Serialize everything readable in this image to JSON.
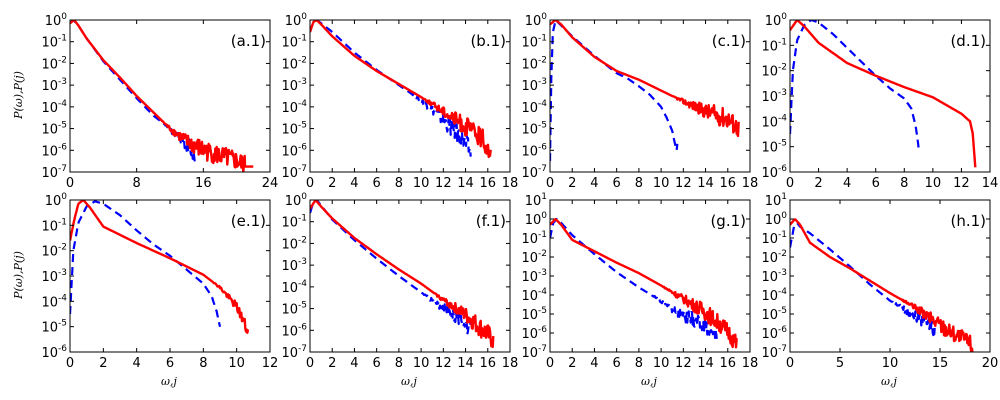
{
  "figure": {
    "ylabel": "P(ω),P(j)",
    "xlabel": "ω,j"
  },
  "chart_data": [
    {
      "type": "line",
      "panel_label": "(a.1)",
      "xlim": [
        0,
        24
      ],
      "xticks": [
        "0",
        "8",
        "16",
        "24"
      ],
      "ylim_exp": [
        -7,
        0
      ],
      "ylabel": "P(ω),P(j)",
      "xlabel": "",
      "series": [
        {
          "name": "P(ω)",
          "color": "#0000ff",
          "dash": true,
          "points": [
            [
              0,
              -0.15
            ],
            [
              0.4,
              0
            ],
            [
              1,
              -0.25
            ],
            [
              2,
              -0.85
            ],
            [
              4,
              -1.9
            ],
            [
              6,
              -2.75
            ],
            [
              8,
              -3.6
            ],
            [
              10,
              -4.4
            ],
            [
              11.5,
              -4.85
            ],
            [
              12.5,
              -5.2
            ],
            [
              13.5,
              -5.5
            ],
            [
              14.5,
              -5.9
            ],
            [
              15,
              -6.4
            ]
          ],
          "noise_from": 11
        },
        {
          "name": "P(j)",
          "color": "#ff0000",
          "dash": false,
          "points": [
            [
              0,
              -0.15
            ],
            [
              0.5,
              0
            ],
            [
              1,
              -0.25
            ],
            [
              2,
              -0.85
            ],
            [
              4,
              -1.85
            ],
            [
              6,
              -2.65
            ],
            [
              8,
              -3.5
            ],
            [
              10,
              -4.25
            ],
            [
              12,
              -5.0
            ],
            [
              14,
              -5.6
            ],
            [
              16,
              -6.0
            ],
            [
              18,
              -6.25
            ],
            [
              20,
              -6.5
            ],
            [
              21,
              -6.7
            ]
          ],
          "noise_from": 11,
          "tail": [
            [
              21,
              -6.75
            ],
            [
              22,
              -6.75
            ]
          ]
        }
      ]
    },
    {
      "type": "line",
      "panel_label": "(b.1)",
      "xlim": [
        0,
        18
      ],
      "xticks": [
        "0",
        "2",
        "4",
        "6",
        "8",
        "10",
        "12",
        "14",
        "16",
        "18"
      ],
      "ylim_exp": [
        -7,
        0
      ],
      "ylabel": "",
      "xlabel": "",
      "series": [
        {
          "name": "P(ω)",
          "color": "#0000ff",
          "dash": true,
          "points": [
            [
              0,
              -0.55
            ],
            [
              0.3,
              -0.1
            ],
            [
              0.6,
              0
            ],
            [
              1,
              -0.15
            ],
            [
              2,
              -0.55
            ],
            [
              4,
              -1.5
            ],
            [
              6,
              -2.3
            ],
            [
              8,
              -3.0
            ],
            [
              10,
              -3.7
            ],
            [
              11,
              -4.1
            ],
            [
              12,
              -4.6
            ],
            [
              13,
              -5.1
            ],
            [
              14,
              -5.7
            ],
            [
              14.5,
              -6.1
            ]
          ],
          "noise_from": 9
        },
        {
          "name": "P(j)",
          "color": "#ff0000",
          "dash": false,
          "points": [
            [
              0,
              -0.55
            ],
            [
              0.3,
              -0.1
            ],
            [
              0.6,
              0
            ],
            [
              1,
              -0.2
            ],
            [
              2,
              -0.75
            ],
            [
              4,
              -1.65
            ],
            [
              6,
              -2.35
            ],
            [
              8,
              -2.95
            ],
            [
              10,
              -3.55
            ],
            [
              12,
              -4.2
            ],
            [
              14,
              -4.9
            ],
            [
              15.5,
              -5.45
            ],
            [
              16.3,
              -6.2
            ]
          ],
          "noise_from": 10
        }
      ]
    },
    {
      "type": "line",
      "panel_label": "(c.1)",
      "xlim": [
        0,
        18
      ],
      "xticks": [
        "0",
        "2",
        "4",
        "6",
        "8",
        "10",
        "12",
        "14",
        "16",
        "18"
      ],
      "ylim_exp": [
        -7,
        0
      ],
      "ylabel": "",
      "xlabel": "",
      "series": [
        {
          "name": "P(ω)",
          "color": "#0000ff",
          "dash": true,
          "points": [
            [
              0,
              -6.5
            ],
            [
              0.1,
              -3.0
            ],
            [
              0.25,
              -0.6
            ],
            [
              0.5,
              0
            ],
            [
              1,
              -0.25
            ],
            [
              2,
              -0.75
            ],
            [
              4,
              -1.65
            ],
            [
              6,
              -2.45
            ],
            [
              7,
              -2.7
            ],
            [
              8,
              -3.05
            ],
            [
              9,
              -3.45
            ],
            [
              10,
              -4.0
            ],
            [
              10.5,
              -4.5
            ],
            [
              11,
              -5.1
            ],
            [
              11.2,
              -5.6
            ],
            [
              11.4,
              -6.0
            ],
            [
              11.5,
              -5.5
            ]
          ],
          "noise_from": 100
        },
        {
          "name": "P(j)",
          "color": "#ff0000",
          "dash": false,
          "points": [
            [
              0,
              -0.2
            ],
            [
              0.5,
              0
            ],
            [
              1,
              -0.2
            ],
            [
              2,
              -0.8
            ],
            [
              4,
              -1.7
            ],
            [
              6,
              -2.35
            ],
            [
              8,
              -2.75
            ],
            [
              10,
              -3.25
            ],
            [
              12,
              -3.75
            ],
            [
              14,
              -4.2
            ],
            [
              16,
              -4.55
            ],
            [
              17,
              -5.0
            ]
          ],
          "noise_from": 11
        }
      ]
    },
    {
      "type": "line",
      "panel_label": "(d.1)",
      "xlim": [
        0,
        14
      ],
      "xticks": [
        "0",
        "2",
        "4",
        "6",
        "8",
        "10",
        "12",
        "14"
      ],
      "ylim_exp": [
        -6,
        0
      ],
      "ylabel": "",
      "xlabel": "",
      "series": [
        {
          "name": "P(ω)",
          "color": "#0000ff",
          "dash": true,
          "points": [
            [
              0,
              -4.5
            ],
            [
              0.2,
              -2.0
            ],
            [
              0.5,
              -0.8
            ],
            [
              1,
              -0.2
            ],
            [
              1.5,
              0
            ],
            [
              2,
              -0.1
            ],
            [
              3,
              -0.55
            ],
            [
              4,
              -1.1
            ],
            [
              5,
              -1.65
            ],
            [
              6,
              -2.2
            ],
            [
              7,
              -2.7
            ],
            [
              8,
              -3.1
            ],
            [
              8.5,
              -3.5
            ],
            [
              8.8,
              -4.2
            ],
            [
              9,
              -5.0
            ],
            [
              9.05,
              -5.7
            ]
          ],
          "noise_from": 100
        },
        {
          "name": "P(j)",
          "color": "#ff0000",
          "dash": false,
          "points": [
            [
              0,
              -0.4
            ],
            [
              0.5,
              0
            ],
            [
              1,
              -0.25
            ],
            [
              2,
              -0.9
            ],
            [
              4,
              -1.7
            ],
            [
              6,
              -2.2
            ],
            [
              8,
              -2.65
            ],
            [
              10,
              -3.05
            ],
            [
              12,
              -3.7
            ],
            [
              12.6,
              -4.0
            ],
            [
              12.8,
              -4.5
            ],
            [
              12.9,
              -5.3
            ],
            [
              13,
              -6.0
            ]
          ],
          "noise_from": 100
        }
      ]
    },
    {
      "type": "line",
      "panel_label": "(e.1)",
      "xlim": [
        0,
        12
      ],
      "xticks": [
        "0",
        "2",
        "4",
        "6",
        "8",
        "10",
        "12"
      ],
      "ylim_exp": [
        -6,
        0
      ],
      "ylabel": "P(ω),P(j)",
      "xlabel": "ω,j",
      "series": [
        {
          "name": "P(ω)",
          "color": "#0000ff",
          "dash": true,
          "points": [
            [
              0,
              -4.5
            ],
            [
              0.2,
              -2.0
            ],
            [
              0.5,
              -0.9
            ],
            [
              1,
              -0.25
            ],
            [
              1.5,
              -0.05
            ],
            [
              2,
              -0.15
            ],
            [
              3,
              -0.6
            ],
            [
              4,
              -1.2
            ],
            [
              5,
              -1.75
            ],
            [
              6,
              -2.2
            ],
            [
              7,
              -2.75
            ],
            [
              8,
              -3.3
            ],
            [
              8.5,
              -3.8
            ],
            [
              8.8,
              -4.4
            ],
            [
              9,
              -5.0
            ]
          ],
          "noise_from": 100
        },
        {
          "name": "P(j)",
          "color": "#ff0000",
          "dash": false,
          "points": [
            [
              0,
              -1.6
            ],
            [
              0.25,
              -0.8
            ],
            [
              0.5,
              -0.15
            ],
            [
              0.8,
              0
            ],
            [
              1.2,
              -0.3
            ],
            [
              2,
              -1.05
            ],
            [
              4,
              -1.7
            ],
            [
              6,
              -2.3
            ],
            [
              8,
              -2.95
            ],
            [
              9,
              -3.45
            ],
            [
              10,
              -4.2
            ],
            [
              10.5,
              -4.9
            ],
            [
              10.7,
              -5.4
            ]
          ],
          "noise_from": 8.5
        }
      ]
    },
    {
      "type": "line",
      "panel_label": "(f.1)",
      "xlim": [
        0,
        18
      ],
      "xticks": [
        "0",
        "2",
        "4",
        "6",
        "8",
        "10",
        "12",
        "14",
        "16",
        "18"
      ],
      "ylim_exp": [
        -7,
        0
      ],
      "ylabel": "",
      "xlabel": "ω,j",
      "series": [
        {
          "name": "P(ω)",
          "color": "#0000ff",
          "dash": true,
          "points": [
            [
              0,
              -0.6
            ],
            [
              0.3,
              -0.1
            ],
            [
              0.6,
              0
            ],
            [
              1,
              -0.25
            ],
            [
              2,
              -0.9
            ],
            [
              4,
              -1.85
            ],
            [
              6,
              -2.7
            ],
            [
              8,
              -3.5
            ],
            [
              10,
              -4.25
            ],
            [
              12,
              -5.0
            ],
            [
              14,
              -5.6
            ],
            [
              14.5,
              -6.1
            ]
          ],
          "noise_from": 10
        },
        {
          "name": "P(j)",
          "color": "#ff0000",
          "dash": false,
          "points": [
            [
              0,
              -0.4
            ],
            [
              0.5,
              0
            ],
            [
              1,
              -0.3
            ],
            [
              2,
              -0.85
            ],
            [
              4,
              -1.75
            ],
            [
              6,
              -2.5
            ],
            [
              8,
              -3.2
            ],
            [
              10,
              -3.85
            ],
            [
              12,
              -4.6
            ],
            [
              14,
              -5.3
            ],
            [
              16,
              -6.2
            ],
            [
              16.5,
              -6.5
            ]
          ],
          "noise_from": 11
        }
      ]
    },
    {
      "type": "line",
      "panel_label": "(g.1)",
      "xlim": [
        0,
        18
      ],
      "xticks": [
        "0",
        "2",
        "4",
        "6",
        "8",
        "10",
        "12",
        "14",
        "16",
        "18"
      ],
      "ylim_exp": [
        -7,
        1
      ],
      "ylabel": "",
      "xlabel": "ω,j",
      "series": [
        {
          "name": "P(ω)",
          "color": "#0000ff",
          "dash": true,
          "points": [
            [
              0,
              -1.0
            ],
            [
              0.3,
              -0.2
            ],
            [
              0.6,
              0
            ],
            [
              1,
              -0.2
            ],
            [
              2,
              -0.85
            ],
            [
              4,
              -1.85
            ],
            [
              6,
              -2.8
            ],
            [
              8,
              -3.6
            ],
            [
              10,
              -4.3
            ],
            [
              12,
              -5.1
            ],
            [
              14,
              -5.6
            ],
            [
              15,
              -6.3
            ]
          ],
          "noise_from": 9
        },
        {
          "name": "P(j)",
          "color": "#ff0000",
          "dash": false,
          "points": [
            [
              0,
              -0.3
            ],
            [
              0.5,
              0
            ],
            [
              1,
              -0.3
            ],
            [
              2,
              -1.1
            ],
            [
              4,
              -1.7
            ],
            [
              6,
              -2.3
            ],
            [
              8,
              -2.85
            ],
            [
              10,
              -3.5
            ],
            [
              12,
              -4.2
            ],
            [
              14,
              -4.9
            ],
            [
              16,
              -5.9
            ],
            [
              16.8,
              -6.6
            ]
          ],
          "noise_from": 10
        }
      ]
    },
    {
      "type": "line",
      "panel_label": "(h.1)",
      "xlim": [
        0,
        20
      ],
      "xticks": [
        "0",
        "5",
        "10",
        "15",
        "20"
      ],
      "ylim_exp": [
        -7,
        1
      ],
      "ylabel": "",
      "xlabel": "ω,j",
      "series": [
        {
          "name": "P(ω)",
          "color": "#0000ff",
          "dash": true,
          "points": [
            [
              0,
              -1.5
            ],
            [
              0.4,
              -0.4
            ],
            [
              0.7,
              -0.2
            ],
            [
              1,
              -0.4
            ],
            [
              2,
              -0.75
            ],
            [
              4,
              -1.6
            ],
            [
              6,
              -2.5
            ],
            [
              8,
              -3.45
            ],
            [
              10,
              -4.3
            ],
            [
              12,
              -4.95
            ],
            [
              14,
              -5.5
            ],
            [
              14.5,
              -6.0
            ]
          ],
          "noise_from": 10
        },
        {
          "name": "P(j)",
          "color": "#ff0000",
          "dash": false,
          "points": [
            [
              0,
              -0.3
            ],
            [
              0.5,
              0
            ],
            [
              1,
              -0.3
            ],
            [
              2,
              -1.25
            ],
            [
              4,
              -2.0
            ],
            [
              6,
              -2.6
            ],
            [
              8,
              -3.25
            ],
            [
              10,
              -3.9
            ],
            [
              12,
              -4.5
            ],
            [
              14,
              -5.2
            ],
            [
              16,
              -5.9
            ],
            [
              18,
              -6.5
            ],
            [
              18.3,
              -6.8
            ]
          ],
          "noise_from": 11
        }
      ]
    }
  ]
}
